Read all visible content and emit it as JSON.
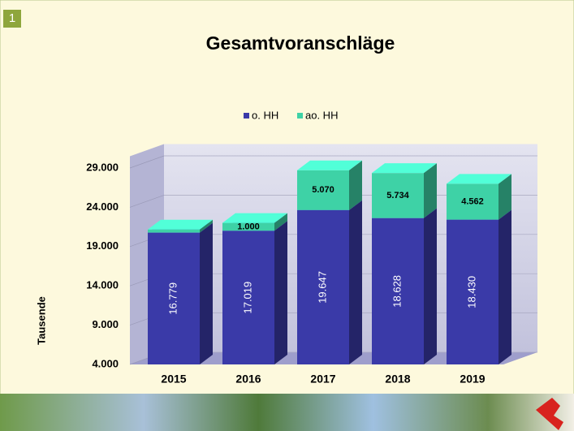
{
  "chart_data": {
    "type": "bar3d_stacked",
    "title": "Gesamtvoranschläge",
    "badge": "1",
    "y_label": "Tausende",
    "categories": [
      "2015",
      "2016",
      "2017",
      "2018",
      "2019"
    ],
    "series": [
      {
        "name": "o. HH",
        "color": "#3a3aa8",
        "values": [
          16779,
          17019,
          19647,
          18628,
          18430
        ],
        "value_labels": [
          "16.779",
          "17.019",
          "19.647",
          "18.628",
          "18.430"
        ]
      },
      {
        "name": "ao. HH",
        "color": "#3ed2a6",
        "values": [
          400,
          1000,
          5070,
          5734,
          4562
        ],
        "value_labels": [
          null,
          "1.000",
          "5.070",
          "5.734",
          "4.562"
        ]
      }
    ],
    "ylim": [
      4000,
      30500
    ],
    "yticks": [
      {
        "value": 4000,
        "label": "4.000"
      },
      {
        "value": 9000,
        "label": "9.000"
      },
      {
        "value": 14000,
        "label": "14.000"
      },
      {
        "value": 19000,
        "label": "19.000"
      },
      {
        "value": 24000,
        "label": "24.000"
      },
      {
        "value": 29000,
        "label": "29.000"
      }
    ],
    "grid": true,
    "legend": "top"
  }
}
